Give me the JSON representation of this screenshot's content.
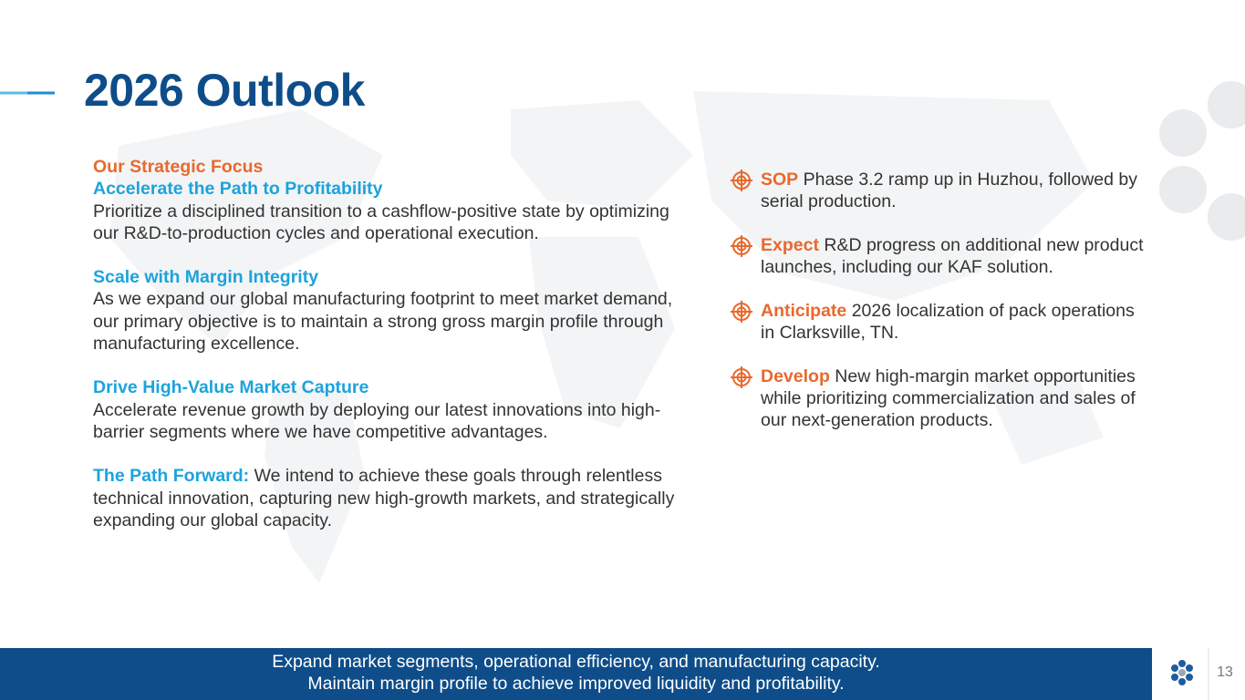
{
  "header": {
    "title": "2026 Outlook"
  },
  "left": {
    "label": "Our Strategic Focus",
    "sections": [
      {
        "heading": "Accelerate the Path to Profitability",
        "body": "Prioritize a disciplined transition to a cashflow-positive state by optimizing our R&D-to-production cycles and operational execution."
      },
      {
        "heading": "Scale with Margin Integrity",
        "body": "As we expand our global manufacturing footprint to meet market demand, our primary objective is to maintain a strong gross margin profile through manufacturing excellence."
      },
      {
        "heading": "Drive High-Value Market Capture",
        "body": "Accelerate revenue growth by deploying our latest innovations into high-barrier segments where we have competitive advantages."
      }
    ],
    "closing": {
      "heading": "The Path Forward:",
      "body": "We intend to achieve these goals through relentless technical innovation, capturing new high-growth markets, and strategically expanding our global capacity."
    }
  },
  "right": {
    "items": [
      {
        "keyword": "SOP",
        "text": "Phase 3.2 ramp up in Huzhou, followed by serial production."
      },
      {
        "keyword": "Expect",
        "text": "R&D progress on additional new product launches, including our KAF solution."
      },
      {
        "keyword": "Anticipate",
        "text": "2026 localization of pack operations in Clarksville, TN."
      },
      {
        "keyword": "Develop",
        "text": "New high-margin market opportunities while prioritizing commercialization and sales of our next-generation products."
      }
    ]
  },
  "footer": {
    "lines": [
      "Expand market segments, operational efficiency, and manufacturing capacity.",
      "Maintain margin profile to achieve improved liquidity and profitability."
    ],
    "page": "13"
  }
}
